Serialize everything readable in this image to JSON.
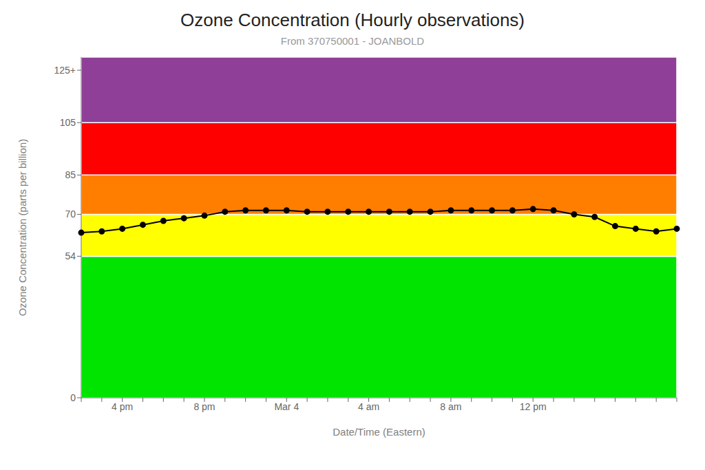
{
  "chart_data": {
    "type": "line",
    "title": "Ozone Concentration (Hourly observations)",
    "subtitle": "From 370750001 - JOANBOLD",
    "x_label": "Date/Time (Eastern)",
    "y_label": "Ozone Concentration (parts per billion)",
    "categories": [
      null,
      null,
      "4 pm",
      null,
      null,
      null,
      "8 pm",
      null,
      null,
      null,
      "Mar 4",
      null,
      null,
      null,
      "4 am",
      null,
      null,
      null,
      "8 am",
      null,
      null,
      null,
      "12 pm",
      null,
      null,
      null,
      null,
      null,
      null,
      null
    ],
    "values": [
      63.0,
      63.5,
      64.5,
      66.0,
      67.5,
      68.5,
      69.5,
      71.0,
      71.5,
      71.5,
      71.5,
      71.0,
      71.0,
      71.0,
      71.0,
      71.0,
      71.0,
      71.0,
      71.5,
      71.5,
      71.5,
      71.5,
      72.0,
      71.5,
      70.0,
      69.0,
      65.5,
      64.5,
      63.5,
      64.5
    ],
    "color": "#000000",
    "marker": "circle",
    "ylim": [
      0,
      130
    ],
    "yticks": [
      0,
      54,
      70,
      85,
      105,
      {
        "value": 125,
        "label": "125+"
      }
    ],
    "grid": false,
    "bands": [
      {
        "ymin": 0,
        "ymax": 54,
        "color": "#00e400"
      },
      {
        "ymin": 54,
        "ymax": 70,
        "color": "#ffff00"
      },
      {
        "ymin": 70,
        "ymax": 85,
        "color": "#ff7e00"
      },
      {
        "ymin": 85,
        "ymax": 105,
        "color": "#ff0000"
      },
      {
        "ymin": 105,
        "ymax": 130,
        "color": "#8f3f97"
      }
    ]
  }
}
